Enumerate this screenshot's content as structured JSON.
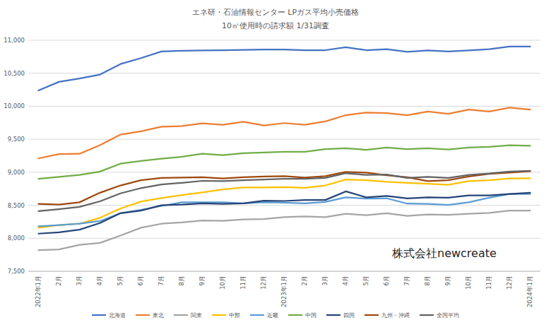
{
  "chart_data": {
    "type": "line",
    "title": "エネ研・石油情報センター LPガス平均小売価格",
    "subtitle": "10㎥使用時の請求額 1/31調査",
    "annotation": "株式会社newcreate",
    "categories": [
      "2022年1月",
      "2月",
      "3月",
      "4月",
      "5月",
      "6月",
      "7月",
      "8月",
      "9月",
      "10月",
      "11月",
      "12月",
      "2023年1月",
      "2月",
      "3月",
      "4月",
      "5月",
      "6月",
      "7月",
      "8月",
      "9月",
      "10月",
      "11月",
      "12月",
      "2024年1月"
    ],
    "ylim": [
      7500,
      11000
    ],
    "yticks": [
      {
        "value": 7500,
        "label": "7,500"
      },
      {
        "value": 8000,
        "label": "8,000"
      },
      {
        "value": 8500,
        "label": "8,500"
      },
      {
        "value": 9000,
        "label": "9,000"
      },
      {
        "value": 9500,
        "label": "9,500"
      },
      {
        "value": 10000,
        "label": "10,000"
      },
      {
        "value": 10500,
        "label": "10,500"
      },
      {
        "value": 11000,
        "label": "11,000"
      }
    ],
    "grid": true,
    "legend": "bottom",
    "series": [
      {
        "name": "北海道",
        "color": "#4472c4",
        "values": [
          10240,
          10370,
          10420,
          10480,
          10640,
          10730,
          10830,
          10840,
          10845,
          10850,
          10855,
          10860,
          10860,
          10850,
          10850,
          10895,
          10850,
          10865,
          10825,
          10845,
          10830,
          10845,
          10865,
          10905,
          10905
        ]
      },
      {
        "name": "東北",
        "color": "#ed7d31",
        "values": [
          9210,
          9275,
          9280,
          9410,
          9570,
          9620,
          9690,
          9700,
          9740,
          9720,
          9765,
          9710,
          9745,
          9720,
          9770,
          9865,
          9905,
          9895,
          9865,
          9920,
          9885,
          9950,
          9920,
          9980,
          9950
        ]
      },
      {
        "name": "関東",
        "color": "#a5a5a5",
        "values": [
          7820,
          7830,
          7900,
          7930,
          8040,
          8160,
          8220,
          8240,
          8270,
          8265,
          8285,
          8290,
          8320,
          8330,
          8320,
          8370,
          8350,
          8380,
          8340,
          8360,
          8355,
          8370,
          8385,
          8420,
          8420
        ]
      },
      {
        "name": "中部",
        "color": "#ffc000",
        "values": [
          8160,
          8200,
          8220,
          8310,
          8450,
          8555,
          8610,
          8655,
          8695,
          8740,
          8770,
          8770,
          8775,
          8765,
          8800,
          8890,
          8880,
          8855,
          8840,
          8825,
          8810,
          8865,
          8880,
          8905,
          8910
        ]
      },
      {
        "name": "近畿",
        "color": "#5b9bd5",
        "values": [
          8180,
          8200,
          8220,
          8260,
          8380,
          8430,
          8490,
          8545,
          8545,
          8545,
          8530,
          8545,
          8540,
          8530,
          8550,
          8620,
          8600,
          8605,
          8525,
          8520,
          8505,
          8545,
          8615,
          8670,
          8670
        ]
      },
      {
        "name": "中国",
        "color": "#70ad47",
        "values": [
          8900,
          8930,
          8960,
          9010,
          9130,
          9170,
          9205,
          9235,
          9280,
          9260,
          9290,
          9300,
          9310,
          9310,
          9350,
          9365,
          9340,
          9375,
          9350,
          9365,
          9345,
          9375,
          9385,
          9410,
          9400
        ]
      },
      {
        "name": "四国",
        "color": "#264478",
        "values": [
          8070,
          8090,
          8130,
          8230,
          8380,
          8420,
          8500,
          8510,
          8530,
          8520,
          8530,
          8570,
          8565,
          8580,
          8580,
          8710,
          8620,
          8640,
          8605,
          8620,
          8615,
          8650,
          8650,
          8670,
          8690
        ]
      },
      {
        "name": "九州・沖縄",
        "color": "#9e480e",
        "values": [
          8520,
          8510,
          8545,
          8690,
          8800,
          8880,
          8915,
          8920,
          8925,
          8905,
          8925,
          8935,
          8940,
          8920,
          8940,
          9005,
          8995,
          8955,
          8925,
          8865,
          8880,
          8935,
          8975,
          8995,
          9015
        ]
      },
      {
        "name": "全国平均",
        "color": "#636363",
        "values": [
          8410,
          8440,
          8475,
          8560,
          8680,
          8760,
          8815,
          8840,
          8870,
          8865,
          8880,
          8890,
          8900,
          8900,
          8915,
          8985,
          8960,
          8965,
          8915,
          8930,
          8915,
          8960,
          8980,
          9010,
          9020
        ]
      }
    ]
  }
}
